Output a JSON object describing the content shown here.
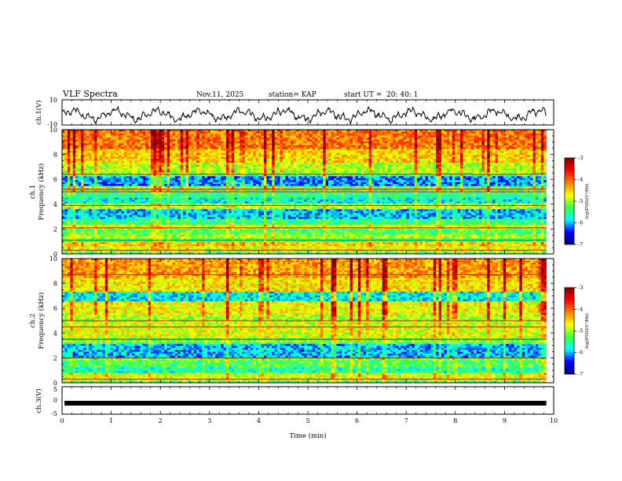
{
  "header": {
    "title": "VLF Spectra",
    "date": "Nov.11, 2025",
    "station": "station= KAP",
    "start_label": "start  UT =",
    "start_time": "20: 40: 1"
  },
  "chart_data": [
    {
      "type": "line",
      "name": "ch1-waveform",
      "ylabel": "ch.1(V)",
      "ylim": [
        -10,
        10
      ],
      "yticklabels": [
        "10",
        "-10"
      ],
      "xlim": [
        0,
        10
      ],
      "description_hint": "noisy oscillating waveform between about -8 and 4 V"
    },
    {
      "type": "heatmap",
      "name": "ch1-spectrogram",
      "ylabel_line1": "ch.1",
      "ylabel_line2": "Frequency (kHz)",
      "ylim": [
        0,
        10
      ],
      "yticks": [
        0,
        2,
        4,
        6,
        8,
        10
      ],
      "xlim": [
        0,
        9.85
      ],
      "band_rows": [
        {
          "f": [
            0.0,
            0.3
          ],
          "level": 0.45
        },
        {
          "f": [
            0.3,
            0.6
          ],
          "level": 0.55
        },
        {
          "f": [
            0.6,
            1.0
          ],
          "level": 0.62
        },
        {
          "f": [
            1.0,
            1.2
          ],
          "level": 0.4
        },
        {
          "f": [
            1.2,
            1.6
          ],
          "level": 0.5
        },
        {
          "f": [
            1.6,
            2.0
          ],
          "level": 0.42
        },
        {
          "f": [
            2.0,
            2.4
          ],
          "level": 0.55
        },
        {
          "f": [
            2.4,
            2.8
          ],
          "level": 0.38
        },
        {
          "f": [
            2.8,
            3.6
          ],
          "level": 0.26
        },
        {
          "f": [
            3.6,
            4.0
          ],
          "level": 0.52
        },
        {
          "f": [
            4.0,
            4.6
          ],
          "level": 0.3
        },
        {
          "f": [
            4.6,
            5.0
          ],
          "level": 0.38
        },
        {
          "f": [
            5.0,
            5.5
          ],
          "level": 0.45
        },
        {
          "f": [
            5.5,
            6.3
          ],
          "level": 0.22
        },
        {
          "f": [
            6.3,
            6.6
          ],
          "level": 0.45
        },
        {
          "f": [
            6.6,
            7.3
          ],
          "level": 0.52
        },
        {
          "f": [
            7.3,
            8.5
          ],
          "level": 0.62
        },
        {
          "f": [
            8.5,
            10.0
          ],
          "level": 0.72
        }
      ],
      "lines_khz": [
        0.3,
        1.1,
        2.1,
        3.9,
        5.0,
        5.2,
        6.4
      ]
    },
    {
      "type": "heatmap",
      "name": "ch2-spectrogram",
      "ylabel_line1": "ch.2",
      "ylabel_line2": "Frequency (kHz)",
      "ylim": [
        0,
        10
      ],
      "yticks": [
        0,
        2,
        4,
        6,
        8,
        10
      ],
      "xlim": [
        0,
        9.85
      ],
      "band_rows": [
        {
          "f": [
            0.0,
            0.3
          ],
          "level": 0.45
        },
        {
          "f": [
            0.3,
            0.8
          ],
          "level": 0.55
        },
        {
          "f": [
            0.8,
            1.3
          ],
          "level": 0.35
        },
        {
          "f": [
            1.3,
            1.9
          ],
          "level": 0.42
        },
        {
          "f": [
            1.9,
            2.1
          ],
          "level": 0.6
        },
        {
          "f": [
            2.1,
            3.2
          ],
          "level": 0.25
        },
        {
          "f": [
            3.2,
            3.6
          ],
          "level": 0.45
        },
        {
          "f": [
            3.6,
            4.8
          ],
          "level": 0.55
        },
        {
          "f": [
            4.8,
            5.4
          ],
          "level": 0.5
        },
        {
          "f": [
            5.4,
            6.5
          ],
          "level": 0.58
        },
        {
          "f": [
            6.5,
            7.3
          ],
          "level": 0.3
        },
        {
          "f": [
            7.3,
            8.5
          ],
          "level": 0.6
        },
        {
          "f": [
            8.5,
            10.0
          ],
          "level": 0.68
        }
      ],
      "lines_khz": [
        0.3,
        2.0,
        3.5,
        4.5,
        5.0,
        8.7
      ]
    },
    {
      "type": "line",
      "name": "ch3-waveform",
      "ylabel": "ch.3(V)",
      "ylim": [
        -5,
        5
      ],
      "yticklabels": [
        "5",
        "0",
        "-5"
      ],
      "xlim": [
        0,
        10
      ],
      "level": -1.0,
      "xlabel": "Time  (min)",
      "xticks": [
        0,
        1,
        2,
        3,
        4,
        5,
        6,
        7,
        8,
        9,
        10
      ]
    }
  ],
  "colorbars": [
    {
      "name": "ch1-colorbar",
      "ticks": [
        "-3",
        "-4",
        "-5",
        "-6",
        "-7"
      ],
      "label": "log(PSD)(V²/Hz)"
    },
    {
      "name": "ch2-colorbar",
      "ticks": [
        "-3",
        "-4",
        "-5",
        "-6",
        "-7"
      ],
      "label": "log(PSD)(V²/Hz)"
    }
  ],
  "colors": {
    "jet": [
      "#000080",
      "#0000ff",
      "#00ffff",
      "#40ff40",
      "#ffff00",
      "#ff8000",
      "#ff0000",
      "#800000"
    ]
  }
}
